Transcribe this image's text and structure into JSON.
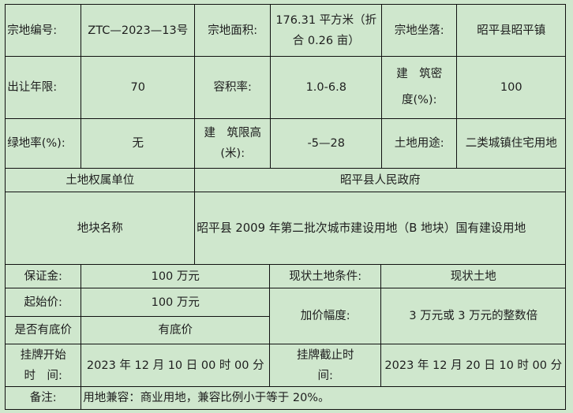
{
  "rows": {
    "parcel_no_label": "宗地编号:",
    "parcel_no": "ZTC—2023—13号",
    "area_label": "宗地面积:",
    "area": "176.31 平方米（折合 0.26 亩）",
    "location_label": "宗地坐落:",
    "location": "昭平县昭平镇",
    "term_label": "出让年限:",
    "term": "70",
    "far_label": "容积率:",
    "far": "1.0-6.8",
    "density_label": "建　筑密度(%):",
    "density": "100",
    "green_label": "绿地率(%):",
    "green": "无",
    "height_label": "建　筑限高(米):",
    "height": "-5—28",
    "use_label": "土地用途:",
    "use": "二类城镇住宅用地",
    "owner_label": "土地权属单位",
    "owner": "昭平县人民政府",
    "name_label": "地块名称",
    "name": "昭平县 2009 年第二批次城市建设用地（B 地块）国有建设用地",
    "deposit_label": "保证金:",
    "deposit": "100 万元",
    "condition_label": "现状土地条件:",
    "condition": "现状土地",
    "start_price_label": "起始价:",
    "start_price": "100 万元",
    "increment_label": "加价幅度:",
    "increment": "3 万元或 3 万元的整数倍",
    "reserve_label": "是否有底价",
    "reserve": "有底价",
    "start_time_label": "挂牌开始时　间:",
    "start_time": "2023 年 12 月 10 日 00 时 00 分",
    "end_time_label": "挂牌截止时　间:",
    "end_time": "2023 年 12 月 20 日 10 时 00 分",
    "remark_label": "备注:",
    "remark": "用地兼容：商业用地，兼容比例小于等于 20%。"
  }
}
